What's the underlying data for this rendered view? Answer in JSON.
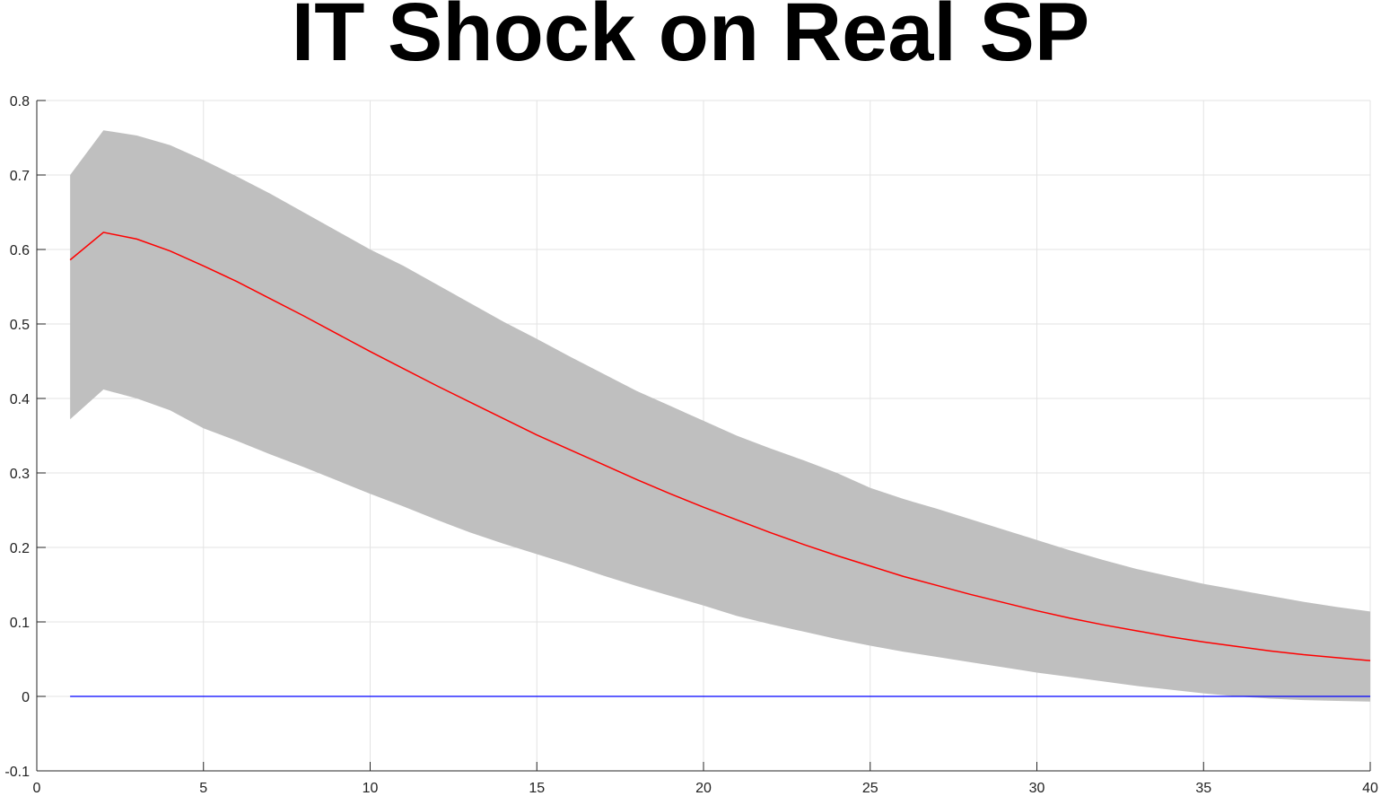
{
  "chart_data": {
    "type": "area",
    "title": "IT Shock on Real SP",
    "xlabel": "",
    "ylabel": "",
    "xlim": [
      0,
      40
    ],
    "ylim": [
      -0.1,
      0.8
    ],
    "xticks": [
      0,
      5,
      10,
      15,
      20,
      25,
      30,
      35,
      40
    ],
    "yticks": [
      -0.1,
      0,
      0.1,
      0.2,
      0.3,
      0.4,
      0.5,
      0.6,
      0.7,
      0.8
    ],
    "xtick_labels": [
      "0",
      "5",
      "10",
      "15",
      "20",
      "25",
      "30",
      "35",
      "40"
    ],
    "ytick_labels": [
      "-0.1",
      "0",
      "0.1",
      "0.2",
      "0.3",
      "0.4",
      "0.5",
      "0.6",
      "0.7",
      "0.8"
    ],
    "grid": true,
    "legend": "none",
    "x": [
      1,
      2,
      3,
      4,
      5,
      6,
      7,
      8,
      9,
      10,
      11,
      12,
      13,
      14,
      15,
      16,
      17,
      18,
      19,
      20,
      21,
      22,
      23,
      24,
      25,
      26,
      27,
      28,
      29,
      30,
      31,
      32,
      33,
      34,
      35,
      36,
      37,
      38,
      39,
      40
    ],
    "series": [
      {
        "role": "upper_band",
        "color": "#bfbfbf",
        "values": [
          0.7,
          0.76,
          0.753,
          0.74,
          0.72,
          0.698,
          0.675,
          0.65,
          0.625,
          0.6,
          0.578,
          0.553,
          0.528,
          0.503,
          0.48,
          0.456,
          0.433,
          0.41,
          0.39,
          0.37,
          0.35,
          0.333,
          0.317,
          0.3,
          0.28,
          0.265,
          0.252,
          0.238,
          0.224,
          0.21,
          0.196,
          0.183,
          0.171,
          0.161,
          0.151,
          0.143,
          0.135,
          0.127,
          0.12,
          0.114
        ]
      },
      {
        "role": "lower_band",
        "color": "#bfbfbf",
        "values": [
          0.372,
          0.412,
          0.4,
          0.384,
          0.36,
          0.343,
          0.325,
          0.308,
          0.29,
          0.272,
          0.255,
          0.237,
          0.22,
          0.205,
          0.191,
          0.177,
          0.162,
          0.148,
          0.135,
          0.122,
          0.108,
          0.097,
          0.087,
          0.077,
          0.068,
          0.06,
          0.053,
          0.046,
          0.039,
          0.032,
          0.026,
          0.02,
          0.014,
          0.009,
          0.004,
          0.0,
          -0.003,
          -0.005,
          -0.006,
          -0.007
        ]
      },
      {
        "role": "median",
        "color": "#ff0000",
        "values": [
          0.586,
          0.623,
          0.614,
          0.598,
          0.578,
          0.557,
          0.534,
          0.511,
          0.487,
          0.463,
          0.44,
          0.417,
          0.395,
          0.373,
          0.351,
          0.331,
          0.311,
          0.291,
          0.272,
          0.254,
          0.237,
          0.22,
          0.204,
          0.189,
          0.175,
          0.161,
          0.149,
          0.137,
          0.126,
          0.115,
          0.105,
          0.096,
          0.088,
          0.08,
          0.073,
          0.067,
          0.061,
          0.056,
          0.052,
          0.048
        ]
      },
      {
        "role": "zero_line",
        "color": "#0000ff",
        "values": [
          0,
          0,
          0,
          0,
          0,
          0,
          0,
          0,
          0,
          0,
          0,
          0,
          0,
          0,
          0,
          0,
          0,
          0,
          0,
          0,
          0,
          0,
          0,
          0,
          0,
          0,
          0,
          0,
          0,
          0,
          0,
          0,
          0,
          0,
          0,
          0,
          0,
          0,
          0,
          0
        ]
      }
    ]
  }
}
